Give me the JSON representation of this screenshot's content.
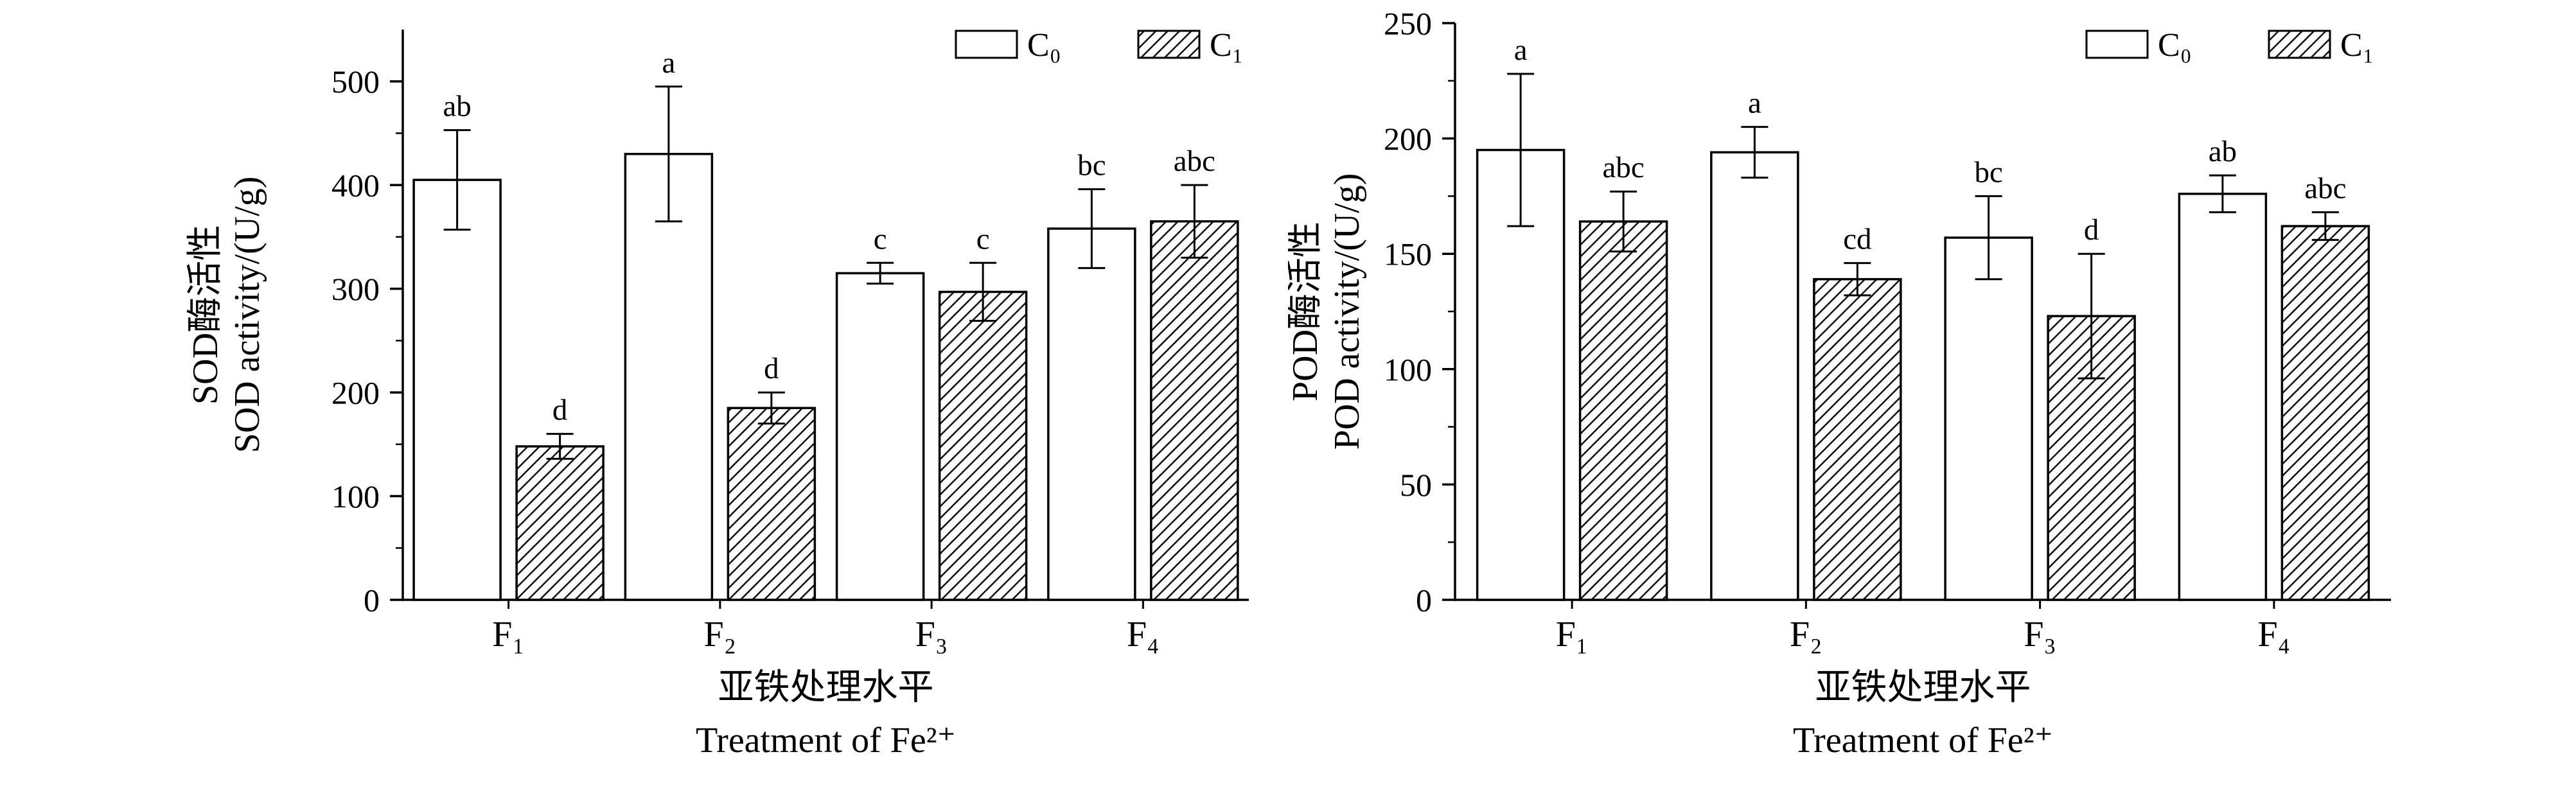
{
  "figure": {
    "background": "#ffffff",
    "ink_color": "#000000"
  },
  "chart_data": [
    {
      "type": "bar",
      "panel": "left",
      "title": "",
      "ylabel_line1": "SOD酶活性",
      "ylabel_line2": "SOD activity/(U/g)",
      "xlabel_line1": "亚铁处理水平",
      "xlabel_line2": "Treatment of Fe²⁺",
      "categories": [
        "F₁",
        "F₂",
        "F₃",
        "F₄"
      ],
      "ylim": [
        0,
        550
      ],
      "yticks": [
        0,
        100,
        200,
        300,
        400,
        500
      ],
      "grid": false,
      "legend_position": "top-right-inside",
      "legend": [
        {
          "label": "C₀",
          "fill": "open"
        },
        {
          "label": "C₁",
          "fill": "hatch"
        }
      ],
      "series": [
        {
          "name": "C₀",
          "fill": "open",
          "values": [
            405,
            430,
            315,
            358
          ],
          "errors": [
            48,
            65,
            10,
            38
          ],
          "sig_letters": [
            "ab",
            "a",
            "c",
            "bc"
          ]
        },
        {
          "name": "C₁",
          "fill": "hatch",
          "values": [
            148,
            185,
            297,
            365
          ],
          "errors": [
            12,
            15,
            28,
            35
          ],
          "sig_letters": [
            "d",
            "d",
            "c",
            "abc"
          ]
        }
      ]
    },
    {
      "type": "bar",
      "panel": "right",
      "title": "",
      "ylabel_line1": "POD酶活性",
      "ylabel_line2": "POD activity/(U/g)",
      "xlabel_line1": "亚铁处理水平",
      "xlabel_line2": "Treatment of Fe²⁺",
      "categories": [
        "F₁",
        "F₂",
        "F₃",
        "F₄"
      ],
      "ylim": [
        0,
        250
      ],
      "yticks": [
        0,
        50,
        100,
        150,
        200,
        250
      ],
      "grid": false,
      "legend_position": "top-right-inside",
      "legend": [
        {
          "label": "C₀",
          "fill": "open"
        },
        {
          "label": "C₁",
          "fill": "hatch"
        }
      ],
      "series": [
        {
          "name": "C₀",
          "fill": "open",
          "values": [
            195,
            194,
            157,
            176
          ],
          "errors": [
            33,
            11,
            18,
            8
          ],
          "sig_letters": [
            "a",
            "a",
            "bc",
            "ab"
          ]
        },
        {
          "name": "C₁",
          "fill": "hatch",
          "values": [
            164,
            139,
            123,
            162
          ],
          "errors": [
            13,
            7,
            27,
            6
          ],
          "sig_letters": [
            "abc",
            "cd",
            "d",
            "abc"
          ]
        }
      ]
    }
  ]
}
